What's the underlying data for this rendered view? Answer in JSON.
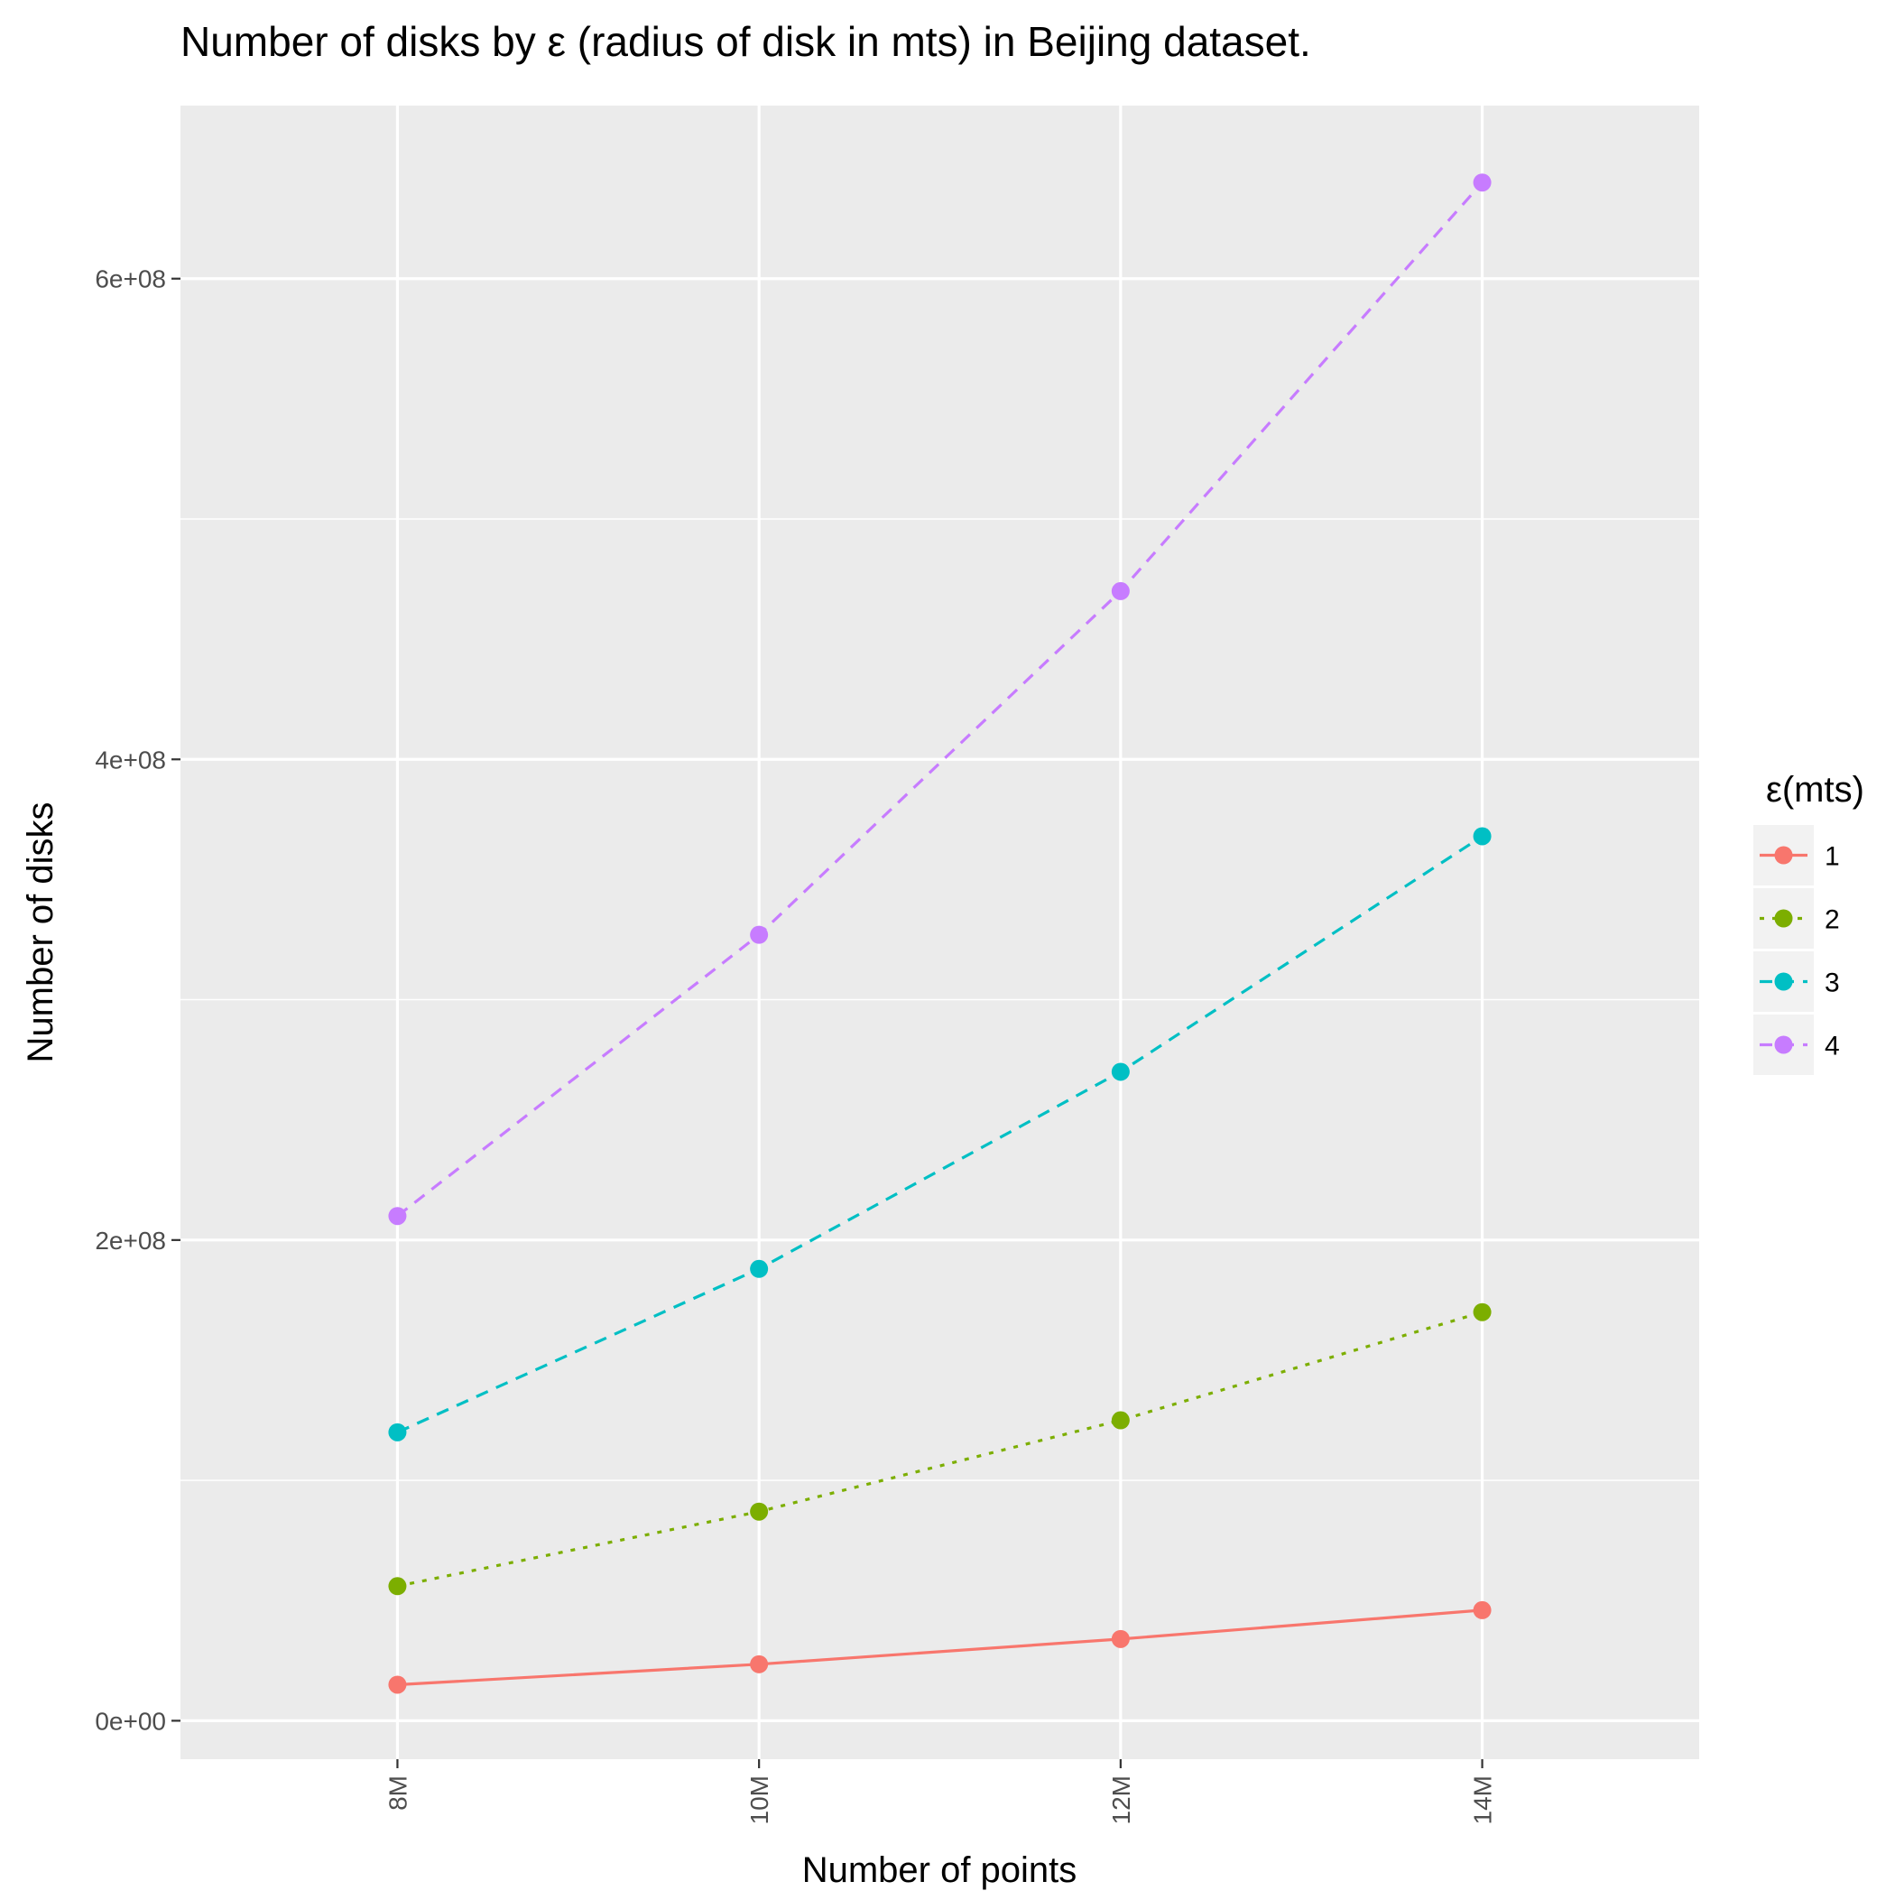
{
  "chart_data": {
    "type": "line",
    "title": "Number of disks by ε (radius of disk in mts) in Beijing dataset.",
    "xlabel": "Number of points",
    "ylabel": "Number of disks",
    "categories": [
      "8M",
      "10M",
      "12M",
      "14M"
    ],
    "xlim": [
      0.4,
      4.6
    ],
    "ylim": [
      -16000000,
      672000000
    ],
    "y_ticks": [
      0,
      200000000,
      400000000,
      600000000
    ],
    "y_tick_labels": [
      "0e+00",
      "2e+08",
      "4e+08",
      "6e+08"
    ],
    "grid": true,
    "legend_position": "right",
    "legend_title": "ε(mts)",
    "series": [
      {
        "name": "1",
        "color": "#F8766D",
        "dash": "solid",
        "values": [
          15000000,
          23500000,
          34000000,
          46000000
        ]
      },
      {
        "name": "2",
        "color": "#7CAE00",
        "dash": "dotted",
        "values": [
          56000000,
          87000000,
          125000000,
          170000000
        ]
      },
      {
        "name": "3",
        "color": "#00BFC4",
        "dash": "dashed",
        "values": [
          120000000,
          188000000,
          270000000,
          368000000
        ]
      },
      {
        "name": "4",
        "color": "#C77CFF",
        "dash": "dashed",
        "values": [
          210000000,
          327000000,
          470000000,
          640000000
        ]
      }
    ]
  }
}
